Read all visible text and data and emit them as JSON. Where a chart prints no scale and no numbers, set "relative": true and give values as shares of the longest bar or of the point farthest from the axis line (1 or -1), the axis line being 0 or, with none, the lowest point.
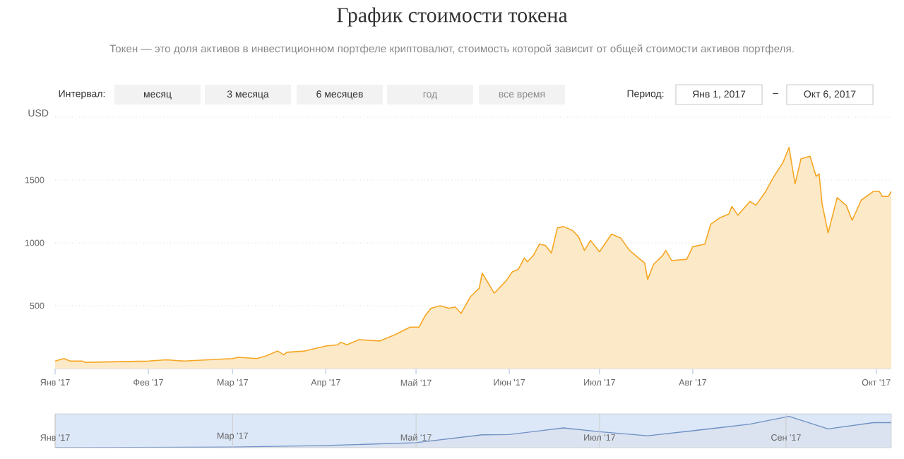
{
  "chart_data": [
    {
      "type": "area",
      "title": "График стоимости токена",
      "subtitle": "Токен — это доля активов в инвестиционном портфеле криптовалют, стоимость которой зависит от общей стоимости активов портфеля.",
      "ylabel": "USD",
      "annotations": [
        "Интервал:",
        "месяц",
        "3 месяца",
        "6 месяцев",
        "год",
        "все время",
        "Период:",
        "Янв 1, 2017",
        "–",
        "Окт 6, 2017"
      ],
      "xlim": [
        "2017-01-01",
        "2017-10-06"
      ],
      "xticks": [
        {
          "value": "2017-01-01",
          "label": "Янв '17"
        },
        {
          "value": "2017-02-01",
          "label": "Фев '17"
        },
        {
          "value": "2017-03-01",
          "label": "Мар '17"
        },
        {
          "value": "2017-04-01",
          "label": "Апр '17"
        },
        {
          "value": "2017-05-01",
          "label": "Май '17"
        },
        {
          "value": "2017-06-01",
          "label": "Июн '17"
        },
        {
          "value": "2017-07-01",
          "label": "Июл '17"
        },
        {
          "value": "2017-08-01",
          "label": "Авг '17"
        },
        {
          "value": "2017-10-01",
          "label": "Окт '17"
        }
      ],
      "ylim": [
        0,
        2000
      ],
      "yticks": [
        500,
        1000,
        1500,
        {
          "value": 2000,
          "label": null
        }
      ],
      "grid": "y",
      "series": [
        {
          "color": "#f5a623",
          "x": [
            "2017-01-01",
            "2017-01-04",
            "2017-01-06",
            "2017-01-10",
            "2017-01-11",
            "2017-02-01",
            "2017-02-07",
            "2017-02-13",
            "2017-03-01",
            "2017-03-03",
            "2017-03-09",
            "2017-03-12",
            "2017-03-16",
            "2017-03-18",
            "2017-03-19",
            "2017-03-25",
            "2017-04-01",
            "2017-04-05",
            "2017-04-06",
            "2017-04-08",
            "2017-04-12",
            "2017-04-19",
            "2017-04-24",
            "2017-04-29",
            "2017-05-01",
            "2017-05-02",
            "2017-05-04",
            "2017-05-06",
            "2017-05-09",
            "2017-05-12",
            "2017-05-14",
            "2017-05-16",
            "2017-05-19",
            "2017-05-22",
            "2017-05-23",
            "2017-05-27",
            "2017-05-31",
            "2017-06-02",
            "2017-06-04",
            "2017-06-06",
            "2017-06-07",
            "2017-06-09",
            "2017-06-11",
            "2017-06-13",
            "2017-06-15",
            "2017-06-17",
            "2017-06-19",
            "2017-06-22",
            "2017-06-24",
            "2017-06-26",
            "2017-06-28",
            "2017-07-01",
            "2017-07-05",
            "2017-07-08",
            "2017-07-11",
            "2017-07-14",
            "2017-07-16",
            "2017-07-17",
            "2017-07-19",
            "2017-07-22",
            "2017-07-23",
            "2017-07-25",
            "2017-07-30",
            "2017-08-01",
            "2017-08-05",
            "2017-08-07",
            "2017-08-10",
            "2017-08-13",
            "2017-08-14",
            "2017-08-16",
            "2017-08-20",
            "2017-08-22",
            "2017-08-25",
            "2017-08-28",
            "2017-08-31",
            "2017-09-02",
            "2017-09-04",
            "2017-09-06",
            "2017-09-09",
            "2017-09-11",
            "2017-09-12",
            "2017-09-13",
            "2017-09-15",
            "2017-09-18",
            "2017-09-21",
            "2017-09-23",
            "2017-09-26",
            "2017-09-30",
            "2017-10-02",
            "2017-10-03",
            "2017-10-05",
            "2017-10-06"
          ],
          "values": [
            60,
            80,
            60,
            60,
            50,
            60,
            70,
            60,
            80,
            90,
            80,
            100,
            140,
            110,
            130,
            140,
            180,
            190,
            210,
            190,
            230,
            220,
            270,
            330,
            330,
            330,
            420,
            480,
            500,
            480,
            490,
            440,
            570,
            640,
            760,
            600,
            700,
            770,
            790,
            880,
            850,
            900,
            990,
            980,
            920,
            1120,
            1130,
            1100,
            1050,
            940,
            1020,
            930,
            1070,
            1040,
            940,
            880,
            840,
            710,
            830,
            900,
            940,
            860,
            870,
            970,
            990,
            1150,
            1200,
            1230,
            1290,
            1220,
            1330,
            1300,
            1400,
            1530,
            1640,
            1760,
            1470,
            1670,
            1690,
            1530,
            1550,
            1310,
            1080,
            1360,
            1300,
            1180,
            1340,
            1410,
            1410,
            1370,
            1370,
            1410
          ]
        }
      ]
    },
    {
      "type": "area",
      "relative": true,
      "grid": "x",
      "xlim": [
        "2017-01-01",
        "2017-10-06"
      ],
      "xticks": [
        {
          "value": "2017-01-01",
          "label": "Янв '17"
        },
        {
          "value": "2017-03-01",
          "label": "Мар '17"
        },
        {
          "value": "2017-05-01",
          "label": "Май '17"
        },
        {
          "value": "2017-07-01",
          "label": "Июл '17"
        },
        {
          "value": "2017-09-01",
          "label": "Сен '17"
        }
      ],
      "bands": [
        {
          "axis": "x",
          "from": "2017-01-01",
          "to": "2017-10-06",
          "color": "#dce8f8"
        }
      ],
      "series": [
        {
          "color": "#6f90c4",
          "x": [
            "2017-01-01",
            "2017-01-11",
            "2017-03-01",
            "2017-04-01",
            "2017-05-01",
            "2017-05-23",
            "2017-06-01",
            "2017-06-19",
            "2017-07-01",
            "2017-07-17",
            "2017-08-01",
            "2017-08-20",
            "2017-09-02",
            "2017-09-15",
            "2017-09-30",
            "2017-10-06"
          ],
          "values": [
            0,
            0,
            0.02,
            0.07,
            0.16,
            0.41,
            0.42,
            0.63,
            0.51,
            0.38,
            0.54,
            0.75,
            1,
            0.6,
            0.8,
            0.8
          ]
        }
      ]
    }
  ]
}
